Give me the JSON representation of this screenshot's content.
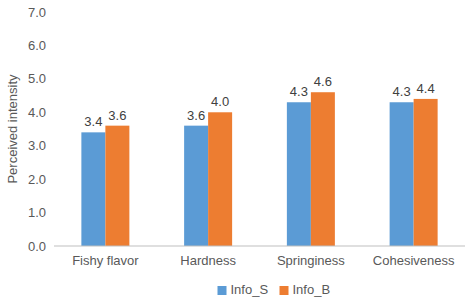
{
  "chart_data": {
    "type": "bar",
    "y_label": "Perceived intensity",
    "categories": [
      "Fishy flavor",
      "Hardness",
      "Springiness",
      "Cohesiveness"
    ],
    "series": [
      {
        "name": "Info_S",
        "color": "#5b9bd5",
        "values": [
          3.4,
          3.6,
          4.3,
          4.3
        ],
        "value_labels": [
          "3.4",
          "3.6",
          "4.3",
          "4.3"
        ]
      },
      {
        "name": "Info_B",
        "color": "#ed7d31",
        "values": [
          3.6,
          4.0,
          4.6,
          4.4
        ],
        "value_labels": [
          "3.6",
          "4.0",
          "4.6",
          "4.4"
        ]
      }
    ],
    "ylim": [
      0,
      7
    ],
    "yticks": [
      {
        "value": 0,
        "label": "0.0"
      },
      {
        "value": 1,
        "label": "1.0"
      },
      {
        "value": 2,
        "label": "2.0"
      },
      {
        "value": 3,
        "label": "3.0"
      },
      {
        "value": 4,
        "label": "4.0"
      },
      {
        "value": 5,
        "label": "5.0"
      },
      {
        "value": 6,
        "label": "6.0"
      },
      {
        "value": 7,
        "label": "7.0"
      }
    ],
    "grid": false,
    "legend": "bottom",
    "data_labels": true
  }
}
